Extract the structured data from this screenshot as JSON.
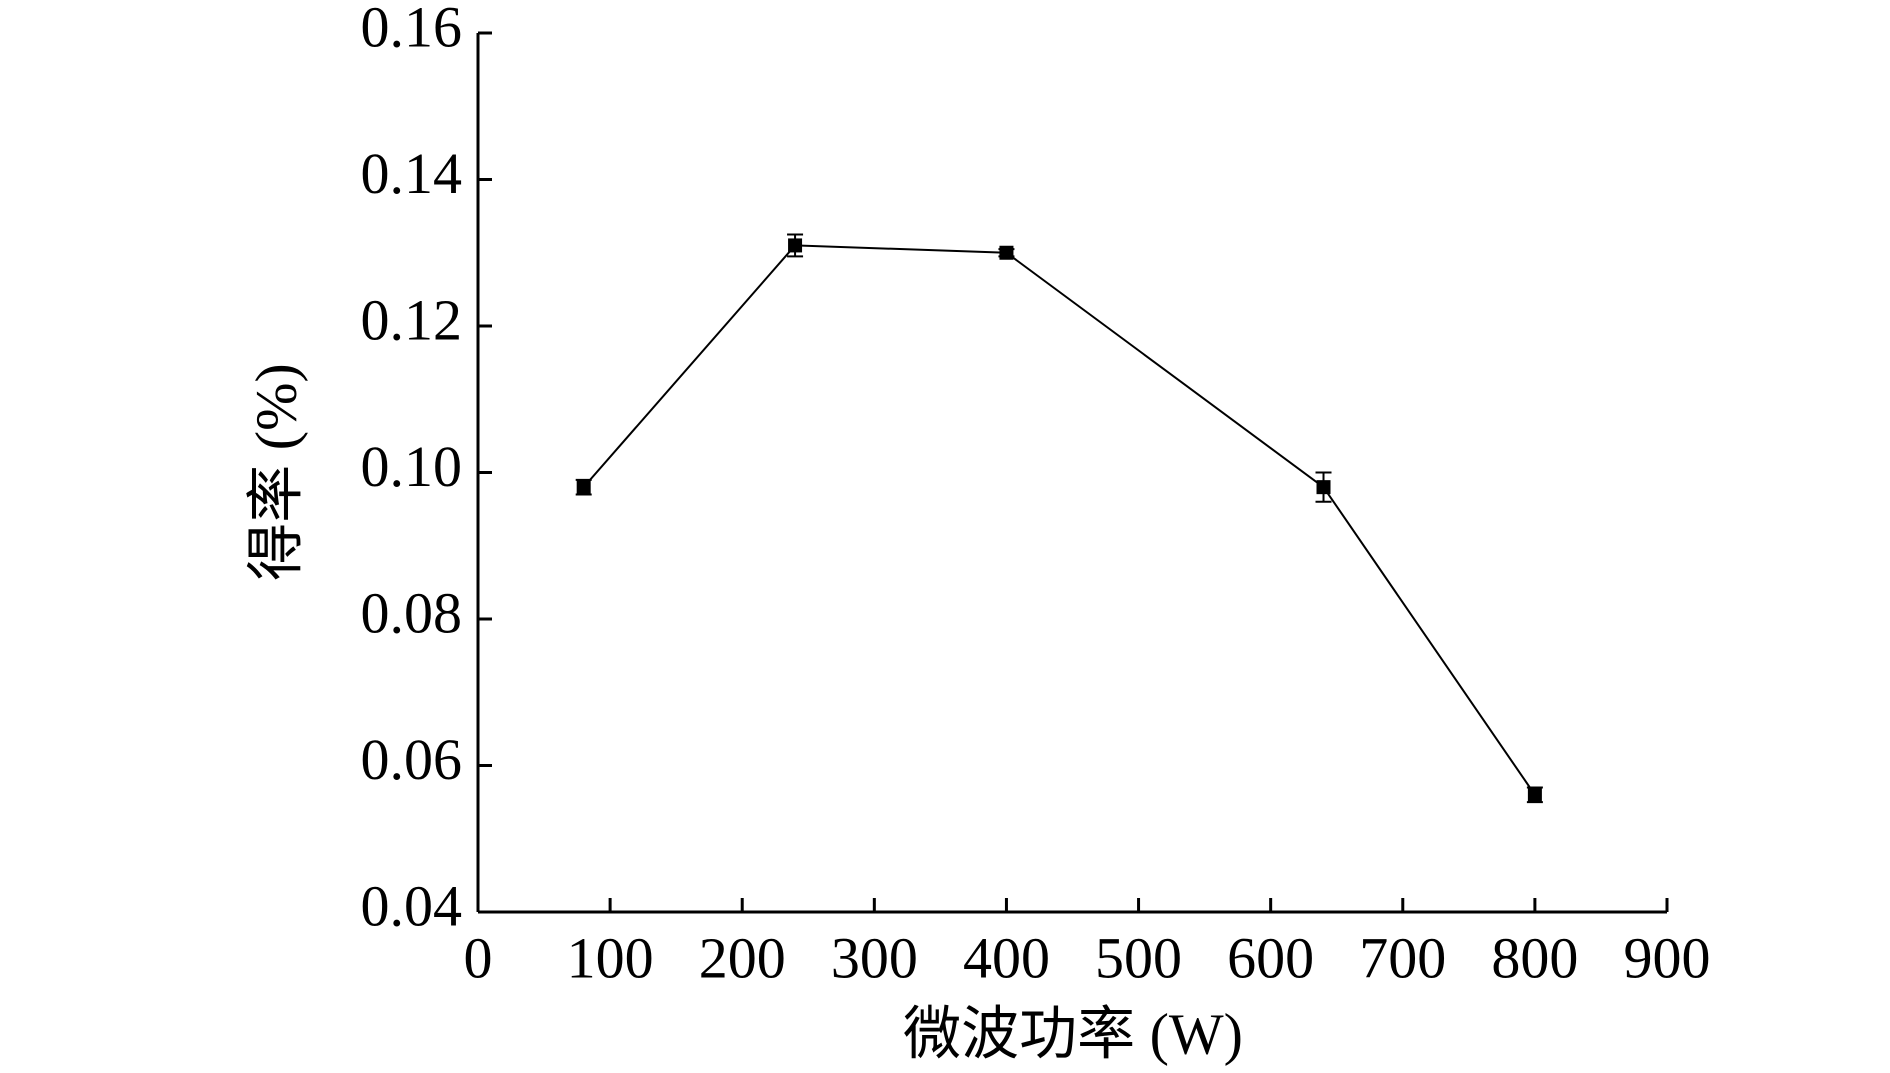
{
  "chart_data": {
    "type": "line",
    "x_label": "微波功率 (W)",
    "y_label": "得率 (%)",
    "x": [
      80,
      240,
      400,
      640,
      800
    ],
    "values": [
      0.098,
      0.131,
      0.13,
      0.098,
      0.056
    ],
    "errors": [
      0.001,
      0.0015,
      0.0005,
      0.002,
      0.001
    ],
    "color": "#000000",
    "xlim": [
      0,
      900
    ],
    "xticks": [
      0,
      100,
      200,
      300,
      400,
      500,
      600,
      700,
      800,
      900
    ],
    "ylim": [
      0.04,
      0.16
    ],
    "yticks": [
      0.04,
      0.06,
      0.08,
      {
        "value": 0.1,
        "label": "0.10"
      },
      0.12,
      0.14,
      0.16
    ],
    "grid": false
  }
}
